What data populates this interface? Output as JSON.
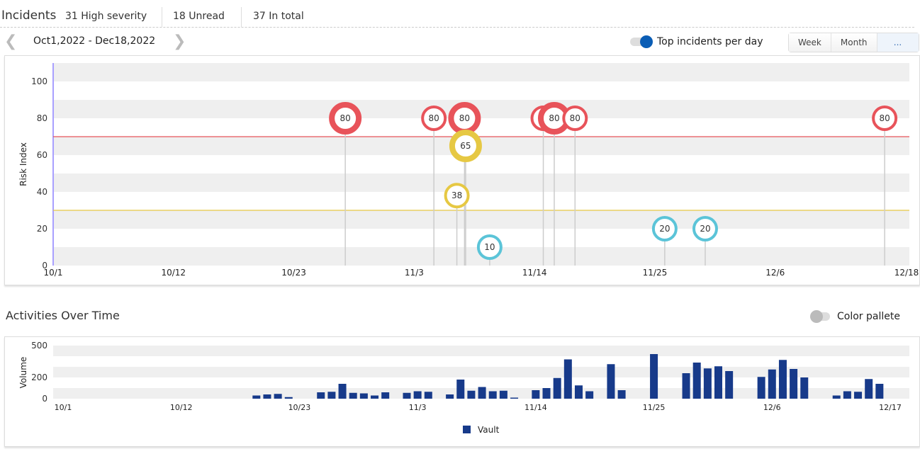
{
  "header": {
    "title": "Incidents",
    "stats": [
      "31 High severity",
      "18 Unread",
      "37 In total"
    ]
  },
  "toolbar": {
    "date_range": "Oct1,2022 - Dec18,2022",
    "toggle_label": "Top incidents per day",
    "toggle_on": true,
    "segments": [
      "Week",
      "Month",
      "..."
    ],
    "active_segment": 2
  },
  "activities": {
    "title": "Activities Over Time",
    "toggle_label": "Color pallete",
    "toggle_on": false
  },
  "colors": {
    "high": "#e8535a",
    "medium": "#e6c843",
    "low": "#5bc4d8",
    "bar": "#173a8a",
    "accent": "#0a5db5"
  },
  "chart_data": [
    {
      "type": "scatter",
      "ylabel": "Risk Index",
      "ylim": [
        0,
        110
      ],
      "yticks": [
        0,
        20,
        40,
        60,
        80,
        100
      ],
      "x_start": "10/1",
      "days_total": 78,
      "xticks": [
        {
          "label": "10/1",
          "day": 0
        },
        {
          "label": "10/12",
          "day": 11
        },
        {
          "label": "10/23",
          "day": 22
        },
        {
          "label": "11/3",
          "day": 33
        },
        {
          "label": "11/14",
          "day": 44
        },
        {
          "label": "11/25",
          "day": 55
        },
        {
          "label": "12/6",
          "day": 66
        },
        {
          "label": "12/18",
          "day": 78
        }
      ],
      "thresholds": [
        {
          "value": 70,
          "color": "#e8535a"
        },
        {
          "value": 30,
          "color": "#e6c843"
        }
      ],
      "points": [
        {
          "day": 26.7,
          "value": 80,
          "label": "80",
          "severity": "high",
          "multiple": true
        },
        {
          "day": 34.8,
          "value": 80,
          "label": "80",
          "severity": "high",
          "multiple": false
        },
        {
          "day": 37.6,
          "value": 80,
          "label": "80",
          "severity": "high",
          "multiple": true
        },
        {
          "day": 36.9,
          "value": 38,
          "label": "38",
          "severity": "medium",
          "multiple": false
        },
        {
          "day": 37.7,
          "value": 65,
          "label": "65",
          "severity": "medium",
          "multiple": true
        },
        {
          "day": 39.9,
          "value": 10,
          "label": "10",
          "severity": "low",
          "multiple": false
        },
        {
          "day": 44.8,
          "value": 80,
          "label": "80",
          "severity": "high",
          "multiple": false
        },
        {
          "day": 45.8,
          "value": 80,
          "label": "80",
          "severity": "high",
          "multiple": true
        },
        {
          "day": 47.7,
          "value": 80,
          "label": "80",
          "severity": "high",
          "multiple": false
        },
        {
          "day": 55.9,
          "value": 20,
          "label": "20",
          "severity": "low",
          "multiple": false
        },
        {
          "day": 59.6,
          "value": 20,
          "label": "20",
          "severity": "low",
          "multiple": false
        },
        {
          "day": 76.0,
          "value": 80,
          "label": "80",
          "severity": "high",
          "multiple": false
        }
      ]
    },
    {
      "type": "bar",
      "ylabel": "Volume",
      "ylim": [
        0,
        500
      ],
      "yticks": [
        0,
        200,
        500
      ],
      "days_total": 77,
      "xticks": [
        {
          "label": "10/1",
          "day": 0
        },
        {
          "label": "10/12",
          "day": 11
        },
        {
          "label": "10/23",
          "day": 22
        },
        {
          "label": "11/3",
          "day": 33
        },
        {
          "label": "11/14",
          "day": 44
        },
        {
          "label": "11/25",
          "day": 55
        },
        {
          "label": "12/6",
          "day": 66
        },
        {
          "label": "12/17",
          "day": 77
        }
      ],
      "legend": [
        "Vault"
      ],
      "legend_position": "bottom",
      "bars": [
        [
          18,
          30
        ],
        [
          19,
          40
        ],
        [
          20,
          45
        ],
        [
          21,
          15
        ],
        [
          24,
          60
        ],
        [
          25,
          65
        ],
        [
          26,
          140
        ],
        [
          27,
          55
        ],
        [
          28,
          50
        ],
        [
          29,
          30
        ],
        [
          30,
          60
        ],
        [
          32,
          55
        ],
        [
          33,
          70
        ],
        [
          34,
          65
        ],
        [
          36,
          40
        ],
        [
          37,
          180
        ],
        [
          38,
          75
        ],
        [
          39,
          110
        ],
        [
          40,
          70
        ],
        [
          41,
          75
        ],
        [
          42,
          10
        ],
        [
          44,
          80
        ],
        [
          45,
          100
        ],
        [
          46,
          195
        ],
        [
          47,
          370
        ],
        [
          48,
          125
        ],
        [
          49,
          70
        ],
        [
          51,
          325
        ],
        [
          52,
          80
        ],
        [
          55,
          420
        ],
        [
          58,
          240
        ],
        [
          59,
          340
        ],
        [
          60,
          285
        ],
        [
          61,
          305
        ],
        [
          62,
          260
        ],
        [
          65,
          205
        ],
        [
          66,
          275
        ],
        [
          67,
          365
        ],
        [
          68,
          280
        ],
        [
          69,
          200
        ],
        [
          72,
          30
        ],
        [
          73,
          70
        ],
        [
          74,
          65
        ],
        [
          75,
          185
        ],
        [
          76,
          140
        ]
      ]
    }
  ]
}
